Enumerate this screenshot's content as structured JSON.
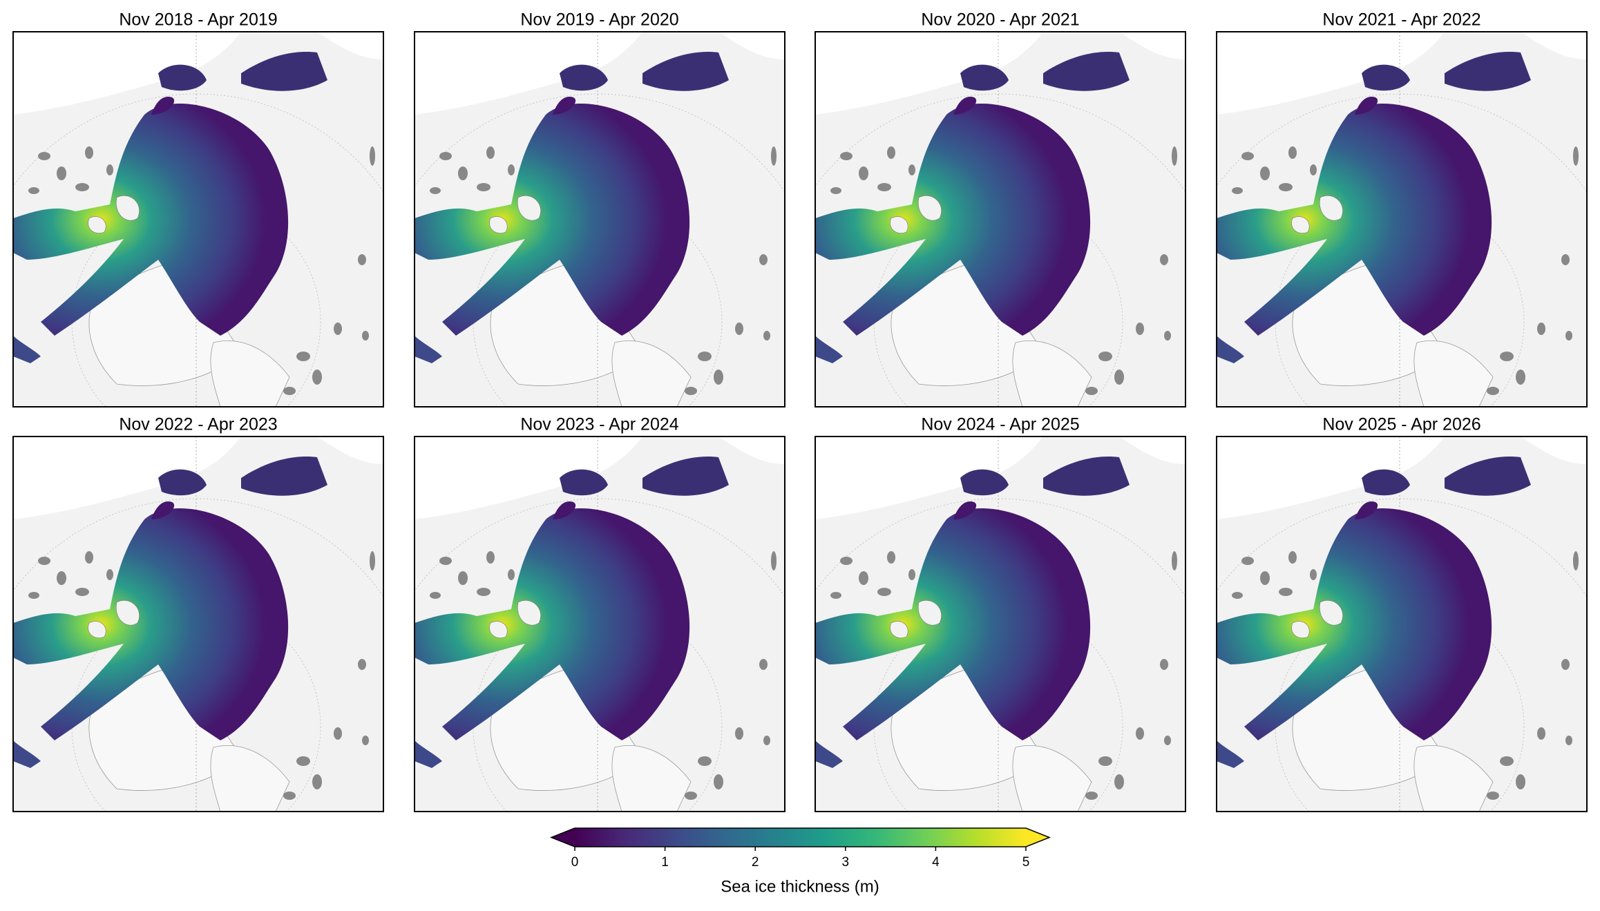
{
  "panels": [
    {
      "title": "Nov 2018 - Apr 2019"
    },
    {
      "title": "Nov 2019 - Apr 2020"
    },
    {
      "title": "Nov 2020 - Apr 2021"
    },
    {
      "title": "Nov 2021 - Apr 2022"
    },
    {
      "title": "Nov 2022 - Apr 2023"
    },
    {
      "title": "Nov 2023 - Apr 2024"
    },
    {
      "title": "Nov 2024 - Apr 2025"
    },
    {
      "title": "Nov 2025 - Apr 2026"
    }
  ],
  "colorbar": {
    "label": "Sea ice thickness (m)",
    "range": [
      0,
      5
    ],
    "ticks": [
      0,
      1,
      2,
      3,
      4,
      5
    ],
    "extend": "both",
    "colors": [
      "#440154",
      "#482878",
      "#3e4989",
      "#31688e",
      "#26828e",
      "#1f9e89",
      "#35b779",
      "#6ece58",
      "#b5de2b",
      "#fde725"
    ]
  }
}
